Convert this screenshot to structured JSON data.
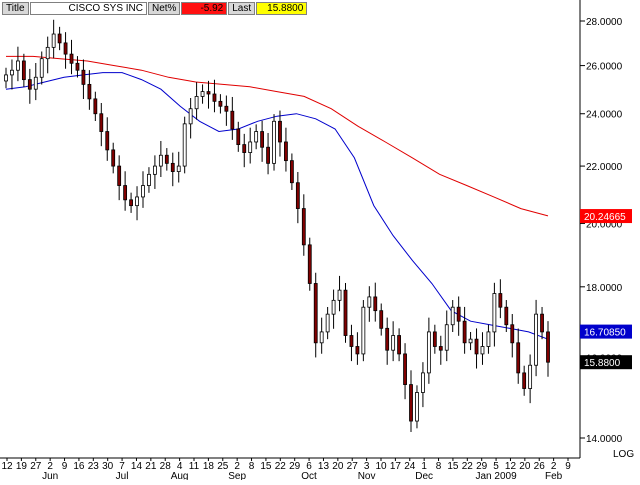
{
  "header": {
    "title_label": "Title",
    "symbol_name": "CISCO SYS INC",
    "net_label": "Net%",
    "net_value": "-5.92",
    "last_label": "Last",
    "last_value": "15.8800"
  },
  "colors": {
    "up_candle": "#ffffff",
    "down_candle": "#800000",
    "ma_short": "#0000cc",
    "ma_long": "#e00000",
    "tag_long": "#ff0000",
    "tag_short": "#0000cc",
    "tag_last": "#000000"
  },
  "chart_data": {
    "type": "candlestick",
    "title": "CISCO SYS INC",
    "ylim": [
      13.4,
      29.0
    ],
    "y_scale": "log",
    "y_ticks": [
      "14.0000",
      "16.0000",
      "18.0000",
      "20.0000",
      "22.0000",
      "24.0000",
      "26.0000",
      "28.0000"
    ],
    "y_tick_values": [
      14,
      16,
      18,
      20,
      22,
      24,
      26,
      28
    ],
    "scale_label": "LOG",
    "x_day_labels": [
      "12",
      "19",
      "27",
      "2",
      "9",
      "16",
      "23",
      "30",
      "7",
      "14",
      "21",
      "28",
      "4",
      "11",
      "18",
      "25",
      "2",
      "8",
      "15",
      "22",
      "29",
      "6",
      "13",
      "20",
      "27",
      "3",
      "10",
      "17",
      "24",
      "1",
      "8",
      "15",
      "22",
      "29",
      "5",
      "12",
      "20",
      "26",
      "2",
      "9"
    ],
    "x_month_labels": [
      "Jun",
      "Jul",
      "Aug",
      "Sep",
      "Oct",
      "Nov",
      "Dec",
      "Jan 2009",
      "Feb"
    ],
    "close_series": [
      25.6,
      25.8,
      26.2,
      25.4,
      25.0,
      25.5,
      26.3,
      26.8,
      27.4,
      27.0,
      26.5,
      26.1,
      25.8,
      25.2,
      24.6,
      24.0,
      23.3,
      22.6,
      22.0,
      21.3,
      20.8,
      20.6,
      20.9,
      21.3,
      21.7,
      22.0,
      22.4,
      22.1,
      21.8,
      22.0,
      23.6,
      24.2,
      24.7,
      24.9,
      24.8,
      24.5,
      24.3,
      24.1,
      23.4,
      22.8,
      22.5,
      22.9,
      23.3,
      22.7,
      22.1,
      23.7,
      22.9,
      22.2,
      21.4,
      20.5,
      19.3,
      18.1,
      16.4,
      16.7,
      17.2,
      17.6,
      17.9,
      16.6,
      16.3,
      16.1,
      17.4,
      17.7,
      17.3,
      16.8,
      16.2,
      16.6,
      16.1,
      15.3,
      14.4,
      15.1,
      15.6,
      16.7,
      16.3,
      16.2,
      16.9,
      17.4,
      17.0,
      16.4,
      16.5,
      16.1,
      16.3,
      16.7,
      17.8,
      17.4,
      16.9,
      16.4,
      15.6,
      15.2,
      15.8,
      17.2,
      16.7,
      15.88
    ],
    "ma_short_points": [
      25.0,
      25.1,
      25.3,
      25.5,
      25.6,
      25.7,
      25.7,
      25.4,
      25.0,
      24.3,
      23.7,
      23.3,
      23.4,
      23.7,
      23.9,
      24.0,
      23.8,
      23.4,
      22.3,
      20.6,
      19.6,
      18.8,
      18.1,
      17.3,
      17.0,
      16.9,
      16.8,
      16.7,
      16.5
    ],
    "ma_long_points": [
      26.4,
      26.4,
      26.3,
      26.2,
      26.0,
      25.8,
      25.5,
      25.3,
      25.2,
      25.1,
      24.9,
      24.7,
      24.2,
      23.5,
      22.9,
      22.3,
      21.7,
      21.3,
      20.9,
      20.5,
      20.25
    ],
    "last_value_tags": [
      {
        "label": "20.24665",
        "value": 20.24665,
        "series": "ma_long"
      },
      {
        "label": "16.70850",
        "value": 16.7085,
        "series": "ma_short"
      },
      {
        "label": "15.8800",
        "value": 15.88,
        "series": "last"
      }
    ]
  }
}
